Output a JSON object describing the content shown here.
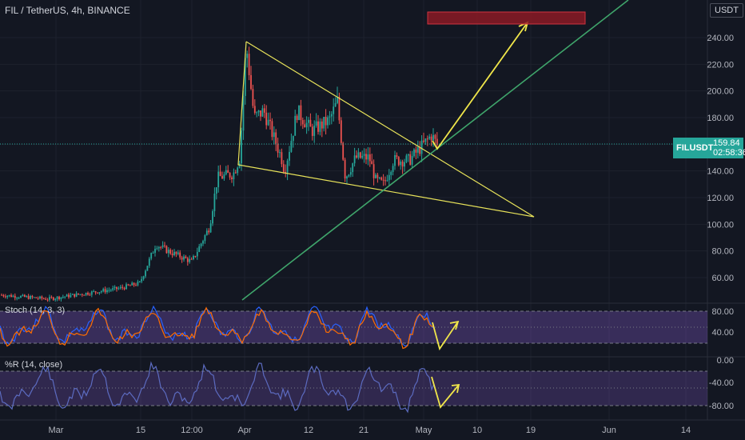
{
  "header": {
    "title": "FIL / TetherUS, 4h, BINANCE",
    "currency_button": "USDT",
    "top_tick_partial": "2"
  },
  "price_axis": {
    "ticks": [
      "240.00",
      "220.00",
      "200.00",
      "180.00",
      "160.00",
      "140.00",
      "120.00",
      "100.00",
      "80.00",
      "60.00"
    ]
  },
  "last_price": {
    "symbol": "FILUSDT",
    "value": "159.84",
    "countdown": "02:58:36"
  },
  "time_axis": {
    "labels": [
      "Mar",
      "15",
      "12:00",
      "Apr",
      "12",
      "21",
      "May",
      "10",
      "19",
      "Jun",
      "14"
    ]
  },
  "indicators": {
    "stoch": {
      "label": "Stoch (14, 3, 3)",
      "ticks": [
        "80.00",
        "40.00"
      ]
    },
    "williams": {
      "label": "%R (14, close)",
      "ticks": [
        "0.00",
        "-40.00",
        "-80.00"
      ]
    }
  },
  "chart_data": {
    "type": "candlestick",
    "symbol": "FIL / TetherUS",
    "interval": "4h",
    "exchange": "BINANCE",
    "y_range": [
      40,
      260
    ],
    "approx_close_path": [
      {
        "t": "early Mar",
        "close": 45
      },
      {
        "t": "mid Mar",
        "close": 55
      },
      {
        "t": "late Mar",
        "close": 90
      },
      {
        "t": "end Mar",
        "close": 130
      },
      {
        "t": "Apr 1",
        "close": 235
      },
      {
        "t": "Apr 5",
        "close": 175
      },
      {
        "t": "Apr 12",
        "close": 175
      },
      {
        "t": "Apr 17",
        "close": 190
      },
      {
        "t": "Apr 21",
        "close": 140
      },
      {
        "t": "Apr 26",
        "close": 145
      },
      {
        "t": "May 1",
        "close": 160
      }
    ],
    "last_value": 159.84,
    "colors": {
      "up": "#26a69a",
      "down": "#ef5350",
      "triangle": "#e8e35a",
      "trendline": "#3fa56b",
      "target_box": "#8b1a24"
    }
  }
}
